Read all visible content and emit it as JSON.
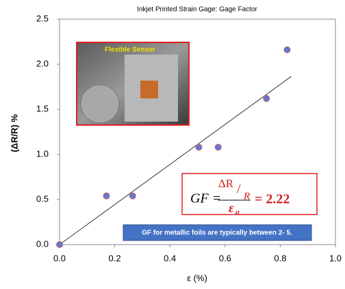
{
  "chart_data": {
    "type": "scatter",
    "title": "Inkjet Printed Strain Gage: Gage Factor",
    "x_label": "ε (%)",
    "y_label": "(ΔR/R) %",
    "x": [
      0,
      0.17,
      0.265,
      0.505,
      0.575,
      0.75,
      0.825
    ],
    "values": [
      0,
      0.54,
      0.54,
      1.08,
      1.08,
      1.62,
      2.16
    ],
    "color": "#5b7bd5",
    "trend": {
      "x": [
        0,
        0.84
      ],
      "values": [
        0,
        1.865
      ]
    },
    "xlim": [
      0,
      1
    ],
    "ylim": [
      0,
      2.5
    ],
    "xticks": [
      {
        "value": 0,
        "label": "0.0"
      },
      {
        "value": 0.2,
        "label": "0.2"
      },
      {
        "value": 0.4,
        "label": "0.4"
      },
      {
        "value": 0.6,
        "label": "0.6"
      },
      {
        "value": 0.8,
        "label": "0.8"
      },
      {
        "value": 1,
        "label": "1.0"
      }
    ],
    "yticks": [
      {
        "value": 0,
        "label": "0.0"
      },
      {
        "value": 0.5,
        "label": "0.5"
      },
      {
        "value": 1,
        "label": "1.0"
      },
      {
        "value": 1.5,
        "label": "1.5"
      },
      {
        "value": 2,
        "label": "2.0"
      },
      {
        "value": 2.5,
        "label": "2.5"
      }
    ],
    "annotations": {
      "photo_label": "Flexible Sensor",
      "formula": {
        "lhs": "GF =",
        "numerator": "ΔR",
        "denominator": "R",
        "epsilon": "ε",
        "subscript": "a",
        "result": "= 2.22"
      },
      "note": "GF for metallic foils are typically between 2- 5."
    }
  }
}
